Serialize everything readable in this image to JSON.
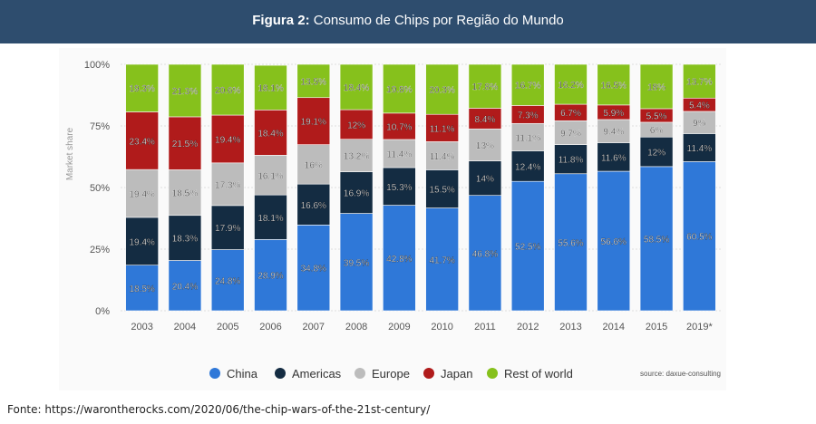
{
  "header": {
    "prefix": "Figura 2:",
    "title": "Consumo de Chips por Região do Mundo"
  },
  "footnote": "Fonte: https://warontherocks.com/2020/06/the-chip-wars-of-the-21st-century/",
  "chart_data": {
    "type": "bar",
    "stacked": true,
    "title": "Consumo de Chips por Região do Mundo",
    "xlabel": "",
    "ylabel": "Market share",
    "ylim": [
      0,
      100
    ],
    "yticks": [
      "0%",
      "25%",
      "50%",
      "75%",
      "100%"
    ],
    "grid": true,
    "legend_position": "bottom",
    "source": "source: daxue-consulting",
    "categories": [
      "2003",
      "2004",
      "2005",
      "2006",
      "2007",
      "2008",
      "2009",
      "2010",
      "2011",
      "2012",
      "2013",
      "2014",
      "2015",
      "2019*"
    ],
    "series": [
      {
        "name": "China",
        "color": "#2f78d8",
        "label_color": "#ffffff",
        "values": [
          18.5,
          20.4,
          24.8,
          28.9,
          34.8,
          39.5,
          42.8,
          41.7,
          46.8,
          52.5,
          55.6,
          56.6,
          58.5,
          60.5
        ],
        "labels": [
          "18.5%",
          "20.4%",
          "24.8%",
          "28.9%",
          "34.8%",
          "39.5%",
          "42.8%",
          "41.7%",
          "46.8%",
          "52.5%",
          "55.6%",
          "56.6%",
          "58.5%",
          "60.5%"
        ]
      },
      {
        "name": "Americas",
        "color": "#142c42",
        "label_color": "#ffffff",
        "values": [
          19.4,
          18.3,
          17.9,
          18.1,
          16.6,
          16.9,
          15.3,
          15.5,
          14,
          12.4,
          11.8,
          11.6,
          12,
          11.4
        ],
        "labels": [
          "19.4%",
          "18.3%",
          "17.9%",
          "18.1%",
          "16.6%",
          "16.9%",
          "15.3%",
          "15.5%",
          "14%",
          "12.4%",
          "11.8%",
          "11.6%",
          "12%",
          "11.4%"
        ]
      },
      {
        "name": "Europe",
        "color": "#bcbcbc",
        "label_color": "#222222",
        "values": [
          19.4,
          18.5,
          17.3,
          16.1,
          16,
          13.2,
          11.4,
          11.4,
          13,
          11.1,
          9.7,
          9.4,
          6,
          9
        ],
        "labels": [
          "19.4%",
          "18.5%",
          "17.3%",
          "16.1%",
          "16%",
          "13.2%",
          "11.4%",
          "11.4%",
          "13%",
          "11.1%",
          "9.7%",
          "9.4%",
          "6%",
          "9%"
        ]
      },
      {
        "name": "Japan",
        "color": "#b01b1b",
        "label_color": "#ffffff",
        "values": [
          23.4,
          21.5,
          19.4,
          18.4,
          19.1,
          12,
          10.7,
          11.1,
          8.4,
          7.3,
          6.7,
          5.9,
          5.5,
          5.4
        ],
        "labels": [
          "23.4%",
          "21.5%",
          "19.4%",
          "18.4%",
          "19.1%",
          "12%",
          "10.7%",
          "11.1%",
          "8.4%",
          "7.3%",
          "6.7%",
          "5.9%",
          "5.5%",
          "5.4%"
        ]
      },
      {
        "name": "Rest of world",
        "color": "#86c11c",
        "label_color": "#222222",
        "values": [
          19.3,
          21.3,
          20.6,
          18.1,
          13.5,
          18.4,
          19.8,
          20.3,
          17.8,
          16.7,
          16.2,
          16.5,
          18,
          13.7
        ],
        "labels": [
          "19.3%",
          "21.3%",
          "20.6%",
          "18.1%",
          "13.5%",
          "18.4%",
          "19.8%",
          "20.3%",
          "17.8%",
          "16.7%",
          "16.2%",
          "16.5%",
          "18%",
          "13.7%"
        ]
      }
    ]
  }
}
